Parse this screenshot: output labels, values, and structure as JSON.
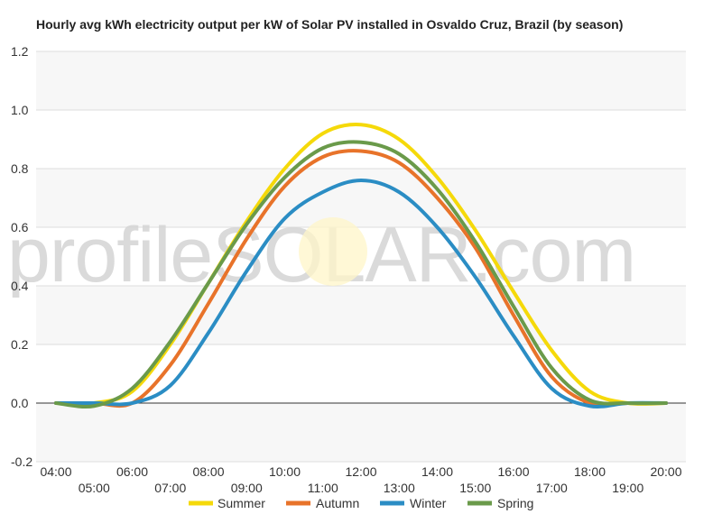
{
  "chart_data": {
    "type": "line",
    "title": "Hourly avg kWh electricity output per kW of Solar PV installed in Osvaldo Cruz, Brazil (by season)",
    "watermark": "profileSOLAR.com",
    "xlabel": "",
    "ylabel": "",
    "ylim": [
      -0.2,
      1.2
    ],
    "y_ticks": [
      "1.2",
      "1.0",
      "0.8",
      "0.6",
      "0.4",
      "0.2",
      "0.0",
      "-0.2"
    ],
    "x_ticks_upper": [
      "04:00",
      "06:00",
      "08:00",
      "10:00",
      "12:00",
      "14:00",
      "16:00",
      "18:00",
      "20:00"
    ],
    "x_ticks_lower": [
      "05:00",
      "07:00",
      "09:00",
      "11:00",
      "13:00",
      "15:00",
      "17:00",
      "19:00"
    ],
    "x": [
      "04:00",
      "05:00",
      "06:00",
      "07:00",
      "08:00",
      "09:00",
      "10:00",
      "11:00",
      "12:00",
      "13:00",
      "14:00",
      "15:00",
      "16:00",
      "17:00",
      "18:00",
      "19:00",
      "20:00"
    ],
    "grid": true,
    "legend_position": "bottom",
    "series": [
      {
        "name": "Summer",
        "color": "#f5d90a",
        "values": [
          0.0,
          0.0,
          0.04,
          0.2,
          0.41,
          0.62,
          0.8,
          0.92,
          0.95,
          0.9,
          0.77,
          0.59,
          0.38,
          0.18,
          0.04,
          0.0,
          0.0
        ]
      },
      {
        "name": "Autumn",
        "color": "#e8732a",
        "values": [
          0.0,
          0.0,
          0.0,
          0.13,
          0.34,
          0.56,
          0.74,
          0.84,
          0.86,
          0.82,
          0.7,
          0.53,
          0.3,
          0.09,
          0.0,
          0.0,
          0.0
        ]
      },
      {
        "name": "Winter",
        "color": "#2b8dc4",
        "values": [
          0.0,
          0.0,
          0.0,
          0.06,
          0.24,
          0.45,
          0.63,
          0.72,
          0.76,
          0.72,
          0.6,
          0.43,
          0.23,
          0.05,
          -0.01,
          0.0,
          0.0
        ]
      },
      {
        "name": "Spring",
        "color": "#6a9a4a",
        "values": [
          0.0,
          -0.01,
          0.05,
          0.21,
          0.41,
          0.61,
          0.77,
          0.87,
          0.89,
          0.85,
          0.73,
          0.55,
          0.33,
          0.12,
          0.01,
          0.0,
          0.0
        ]
      }
    ]
  }
}
